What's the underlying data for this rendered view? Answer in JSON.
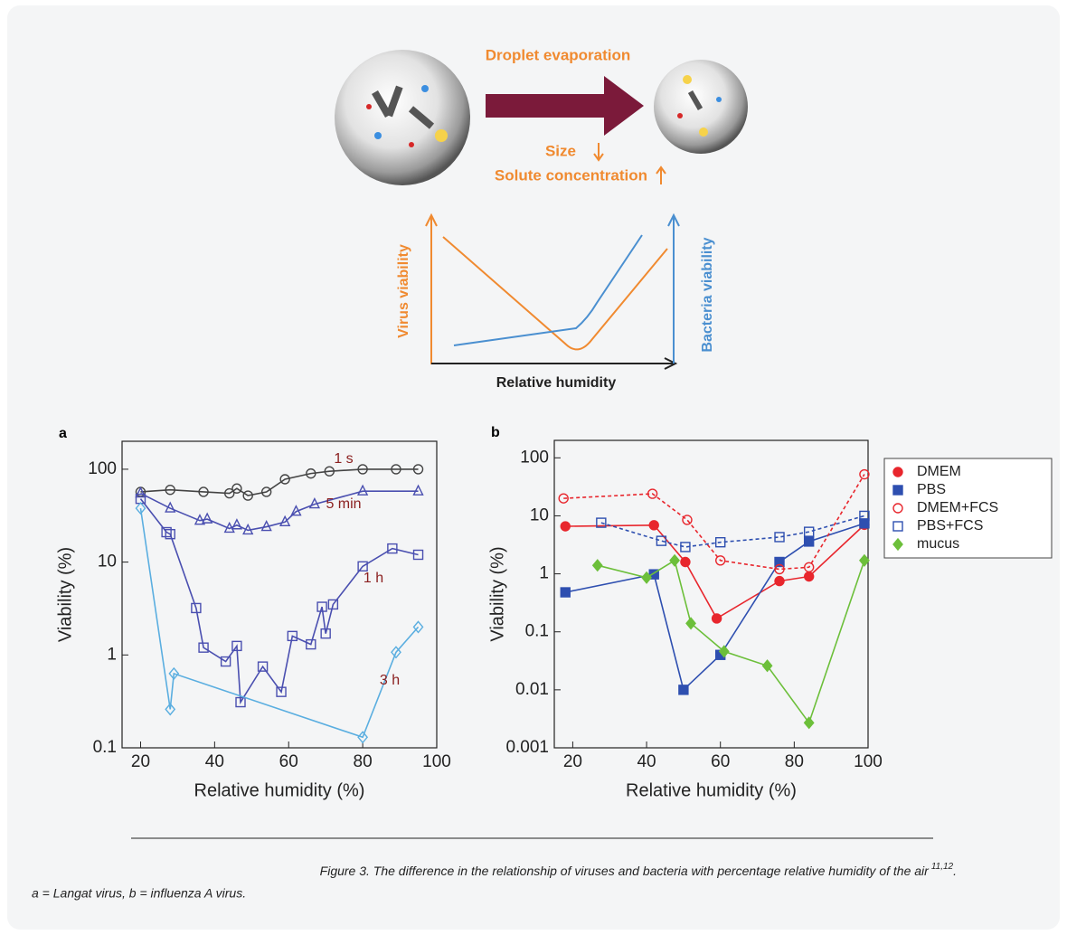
{
  "diagram": {
    "process": "Droplet evaporation",
    "size": "Size",
    "solute": "Solute concentration",
    "y_left": "Virus viability",
    "y_right": "Bacteria viability",
    "x_label": "Relative humidity"
  },
  "chart_data": [
    {
      "type": "scatter",
      "panel": "a",
      "xlabel": "Relative humidity (%)",
      "ylabel": "Viability (%)",
      "log_y": true,
      "xlim": [
        15,
        100
      ],
      "ylim": [
        0.1,
        200
      ],
      "xticks": [
        20,
        40,
        60,
        80,
        100
      ],
      "yticks": [
        0.1,
        1,
        10,
        100
      ],
      "series": [
        {
          "name": "1 s",
          "color": "#444444",
          "marker": "circle",
          "filled": false,
          "dashed": false,
          "x": [
            20,
            28,
            37,
            44,
            46,
            49,
            54,
            59,
            66,
            71,
            80,
            89,
            95
          ],
          "y": [
            57,
            60,
            57,
            55,
            62,
            52,
            57,
            78,
            90,
            95,
            100,
            100,
            100
          ]
        },
        {
          "name": "5 min",
          "color": "#4a4fb0",
          "marker": "triangle",
          "filled": false,
          "dashed": false,
          "x": [
            20,
            28,
            36,
            38,
            44,
            46,
            49,
            54,
            59,
            62,
            67,
            80,
            95
          ],
          "y": [
            55,
            38,
            28,
            29,
            23,
            25,
            22,
            24,
            27,
            35,
            42,
            58,
            58
          ]
        },
        {
          "name": "1 h",
          "color": "#4a4fb0",
          "marker": "square",
          "filled": false,
          "dashed": false,
          "x": [
            20,
            27,
            28,
            35,
            37,
            43,
            46,
            47,
            53,
            58,
            61,
            66,
            69,
            70,
            72,
            80,
            88,
            95
          ],
          "y": [
            48,
            21,
            20,
            3.2,
            1.2,
            0.85,
            1.25,
            0.31,
            0.75,
            0.4,
            1.6,
            1.3,
            3.3,
            1.7,
            3.5,
            9,
            14,
            12
          ]
        },
        {
          "name": "3 h",
          "color": "#5aaee0",
          "marker": "diamond",
          "filled": false,
          "dashed": false,
          "x": [
            20,
            28,
            29,
            80,
            89,
            95
          ],
          "y": [
            38,
            0.26,
            0.63,
            0.13,
            1.07,
            2.0
          ]
        }
      ]
    },
    {
      "type": "scatter",
      "panel": "b",
      "xlabel": "Relative humidity (%)",
      "ylabel": "Viability (%)",
      "log_y": true,
      "xlim": [
        15,
        100
      ],
      "ylim": [
        0.001,
        200
      ],
      "xticks": [
        20,
        40,
        60,
        80,
        100
      ],
      "yticks": [
        0.001,
        0.01,
        0.1,
        1,
        10,
        100
      ],
      "legend": "right",
      "series": [
        {
          "name": "DMEM",
          "color": "#e8262d",
          "marker": "circle",
          "filled": true,
          "dashed": false,
          "x": [
            18,
            42,
            50.5,
            59,
            76,
            84,
            99
          ],
          "y": [
            6.6,
            6.9,
            1.6,
            0.17,
            0.75,
            0.9,
            7
          ]
        },
        {
          "name": "PBS",
          "color": "#2e4fb0",
          "marker": "square",
          "filled": true,
          "dashed": false,
          "x": [
            18,
            42,
            50,
            60,
            76,
            84,
            99
          ],
          "y": [
            0.48,
            0.98,
            0.01,
            0.04,
            1.6,
            3.6,
            7.4
          ]
        },
        {
          "name": "DMEM+FCS",
          "color": "#e8262d",
          "marker": "circle",
          "filled": false,
          "dashed": true,
          "x": [
            17.5,
            41.6,
            51,
            60,
            76,
            84,
            99
          ],
          "y": [
            20,
            24,
            8.5,
            1.7,
            1.2,
            1.3,
            52
          ]
        },
        {
          "name": "PBS+FCS",
          "color": "#2e4fb0",
          "marker": "square",
          "filled": false,
          "dashed": true,
          "x": [
            27.7,
            44,
            50.5,
            60,
            76,
            84,
            99
          ],
          "y": [
            7.6,
            3.7,
            2.9,
            3.5,
            4.3,
            5.3,
            10
          ]
        },
        {
          "name": "mucus",
          "color": "#6cbf3a",
          "marker": "diamond",
          "filled": true,
          "dashed": false,
          "x": [
            26.7,
            40,
            47.6,
            52,
            61,
            72.7,
            84,
            99
          ],
          "y": [
            1.4,
            0.86,
            1.7,
            0.14,
            0.046,
            0.026,
            0.0027,
            1.7
          ]
        }
      ]
    }
  ],
  "caption": {
    "text": "Figure 3. The difference in the relationship of viruses and bacteria with percentage relative humidity of the air",
    "superscript": "11,12",
    "end": ".",
    "line2": "a = Langat virus, b = influenza A virus."
  }
}
